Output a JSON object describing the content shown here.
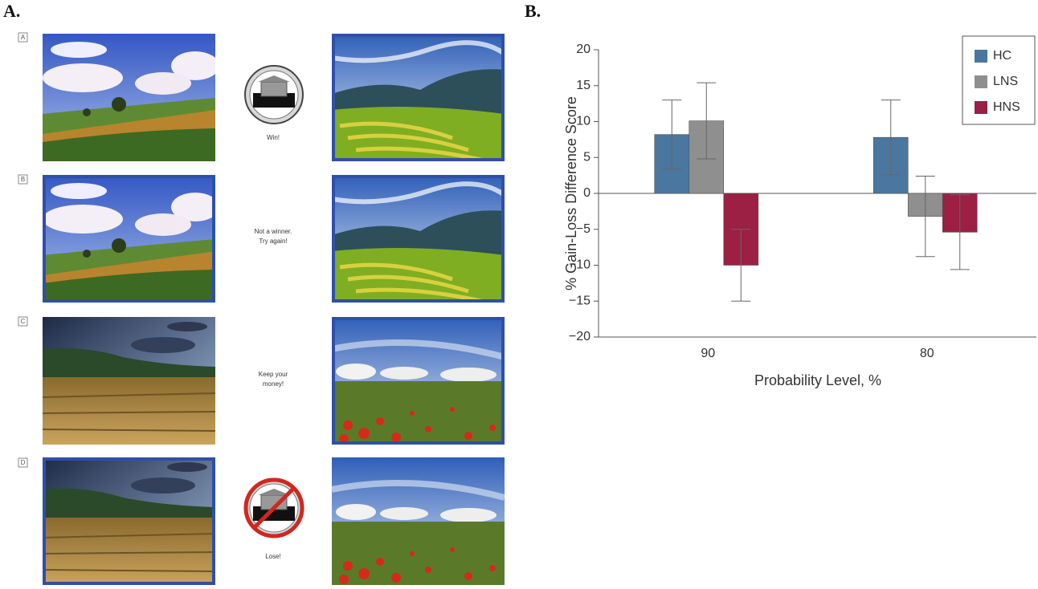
{
  "panel_a": {
    "label": "A.",
    "rows": [
      {
        "label": "A",
        "caption": [
          "Win!"
        ]
      },
      {
        "label": "B",
        "caption": [
          "Not a winner.",
          "Try again!"
        ]
      },
      {
        "label": "C",
        "caption": [
          "Keep your",
          "money!"
        ]
      },
      {
        "label": "D",
        "caption": [
          "Lose!"
        ]
      }
    ]
  },
  "panel_b": {
    "label": "B."
  },
  "chart_data": {
    "type": "bar",
    "x_label": "Probability Level, %",
    "y_label": "% Gain-Loss Difference Score",
    "categories": [
      "90",
      "80"
    ],
    "series": [
      {
        "name": "HC",
        "color": "#4a77a0",
        "values": [
          8.2,
          7.8
        ],
        "errors": [
          4.8,
          5.2
        ]
      },
      {
        "name": "LNS",
        "color": "#8f8f8f",
        "values": [
          10.1,
          -3.2
        ],
        "errors": [
          5.3,
          5.6
        ]
      },
      {
        "name": "HNS",
        "color": "#9c1f44",
        "values": [
          -10.0,
          -5.4
        ],
        "errors": [
          5.0,
          5.2
        ]
      }
    ],
    "ylim": [
      -20,
      20
    ],
    "yticks": [
      {
        "value": -20,
        "label": "−20"
      },
      {
        "value": -15,
        "label": "−15"
      },
      {
        "value": -10,
        "label": "−10"
      },
      {
        "value": -5,
        "label": "−5"
      },
      0,
      5,
      10,
      15,
      20
    ],
    "legend": "upper right",
    "grid": false
  }
}
